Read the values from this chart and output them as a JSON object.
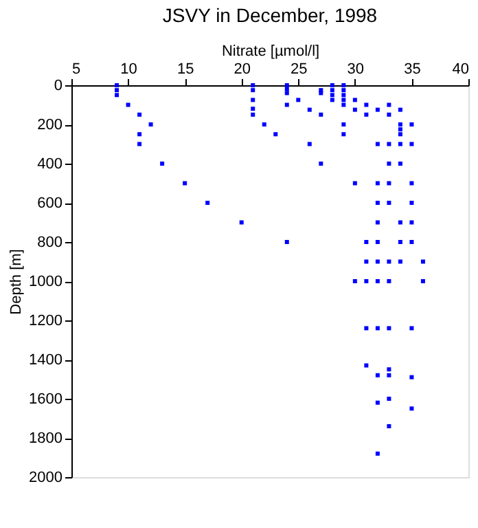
{
  "chart_data": {
    "type": "scatter",
    "title": "JSVY in December, 1998",
    "xlabel": "Nitrate [µmol/l]",
    "ylabel": "Depth [m]",
    "xlim": [
      5,
      40
    ],
    "xticks": [
      5,
      10,
      15,
      20,
      25,
      30,
      35,
      40
    ],
    "ylim": [
      2000,
      0
    ],
    "yticks": [
      0,
      200,
      400,
      600,
      800,
      1000,
      1200,
      1400,
      1600,
      1800,
      2000
    ],
    "marker": "square",
    "grid": false,
    "legend": false,
    "series": [
      {
        "color": "#0000ff",
        "x": [
          9,
          9,
          9,
          10,
          11,
          11,
          11,
          12,
          13,
          15,
          17,
          20,
          21,
          21,
          21,
          21,
          21,
          22,
          23,
          24,
          24,
          24,
          24,
          24,
          25,
          26,
          26,
          27,
          27,
          27,
          27,
          28,
          28,
          28,
          28,
          29,
          29,
          29,
          29,
          29,
          29,
          29,
          30,
          30,
          30,
          30,
          31,
          31,
          31,
          31,
          31,
          31,
          31,
          32,
          32,
          32,
          32,
          32,
          32,
          32,
          32,
          32,
          32,
          32,
          32,
          33,
          33,
          33,
          33,
          33,
          33,
          33,
          33,
          33,
          33,
          33,
          33,
          33,
          34,
          34,
          34,
          34,
          34,
          34,
          34,
          34,
          34,
          35,
          35,
          35,
          35,
          35,
          35,
          35,
          35,
          35,
          36,
          36
        ],
        "values": [
          0,
          25,
          50,
          100,
          150,
          250,
          300,
          200,
          400,
          500,
          600,
          700,
          0,
          25,
          75,
          120,
          150,
          200,
          250,
          0,
          20,
          40,
          100,
          800,
          75,
          125,
          300,
          25,
          40,
          150,
          400,
          0,
          25,
          50,
          75,
          0,
          25,
          50,
          75,
          100,
          200,
          250,
          75,
          125,
          500,
          1000,
          100,
          150,
          800,
          900,
          1000,
          1240,
          1430,
          125,
          300,
          500,
          600,
          700,
          800,
          900,
          1000,
          1240,
          1480,
          1620,
          1880,
          100,
          150,
          300,
          400,
          500,
          600,
          900,
          1000,
          1240,
          1450,
          1480,
          1600,
          1740,
          125,
          200,
          225,
          250,
          300,
          400,
          700,
          800,
          900,
          200,
          300,
          500,
          600,
          700,
          800,
          1240,
          1490,
          1650,
          900,
          1000
        ]
      }
    ]
  }
}
